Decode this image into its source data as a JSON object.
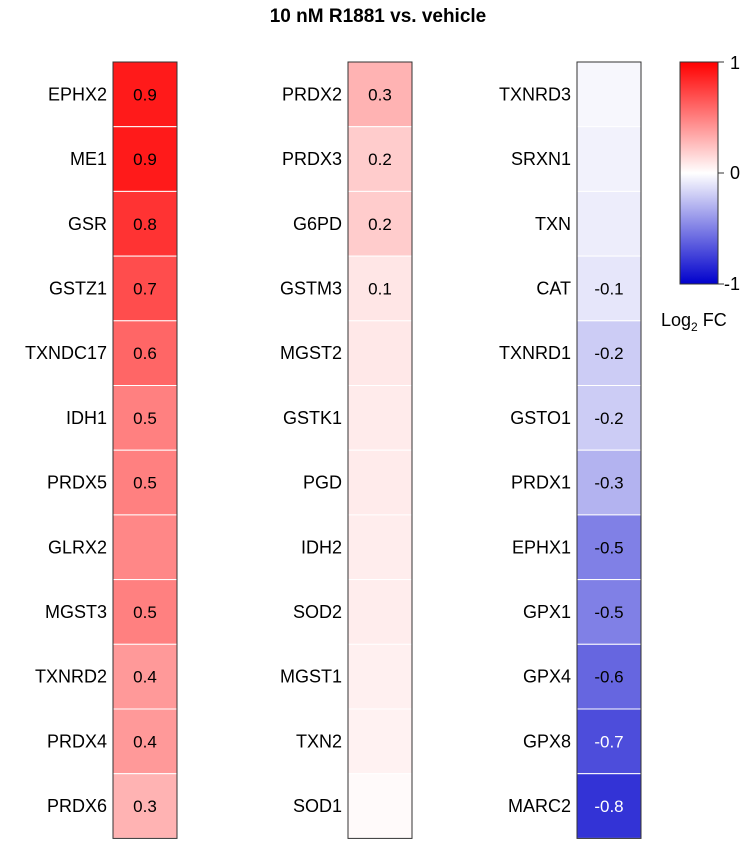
{
  "chart_data": {
    "type": "heatmap",
    "title": "10 nM R1881 vs. vehicle",
    "color_scale": {
      "min": -1,
      "mid": 0,
      "max": 1,
      "colors": {
        "min": "#0000cc",
        "mid": "#ffffff",
        "max": "#ff0000"
      },
      "tick_labels": [
        "1",
        "0",
        "-1"
      ],
      "label_main": "Log",
      "label_sub": "2",
      "label_tail": " FC"
    },
    "columns": [
      {
        "genes": [
          "EPHX2",
          "ME1",
          "GSR",
          "GSTZ1",
          "TXNDC17",
          "IDH1",
          "PRDX5",
          "GLRX2",
          "MGST3",
          "TXNRD2",
          "PRDX4",
          "PRDX6"
        ],
        "values": [
          0.9,
          0.9,
          0.8,
          0.7,
          0.6,
          0.5,
          0.5,
          0.47,
          0.5,
          0.4,
          0.4,
          0.3
        ],
        "labels": [
          "0.9",
          "0.9",
          "0.8",
          "0.7",
          "0.6",
          "0.5",
          "0.5",
          "",
          "0.5",
          "0.4",
          "0.4",
          "0.3"
        ]
      },
      {
        "genes": [
          "PRDX2",
          "PRDX3",
          "G6PD",
          "GSTM3",
          "MGST2",
          "GSTK1",
          "PGD",
          "IDH2",
          "SOD2",
          "MGST1",
          "TXN2",
          "SOD1"
        ],
        "values": [
          0.3,
          0.2,
          0.2,
          0.1,
          0.09,
          0.08,
          0.08,
          0.07,
          0.07,
          0.06,
          0.05,
          0.02
        ],
        "labels": [
          "0.3",
          "0.2",
          "0.2",
          "0.1",
          "",
          "",
          "",
          "",
          "",
          "",
          "",
          ""
        ]
      },
      {
        "genes": [
          "TXNRD3",
          "SRXN1",
          "TXN",
          "CAT",
          "TXNRD1",
          "GSTO1",
          "PRDX1",
          "EPHX1",
          "GPX1",
          "GPX4",
          "GPX8",
          "MARC2"
        ],
        "values": [
          -0.03,
          -0.05,
          -0.07,
          -0.1,
          -0.2,
          -0.2,
          -0.3,
          -0.5,
          -0.5,
          -0.6,
          -0.7,
          -0.8
        ],
        "labels": [
          "",
          "",
          "",
          "-0.1",
          "-0.2",
          "-0.2",
          "-0.3",
          "-0.5",
          "-0.5",
          "-0.6",
          "-0.7",
          "-0.8"
        ]
      }
    ]
  }
}
